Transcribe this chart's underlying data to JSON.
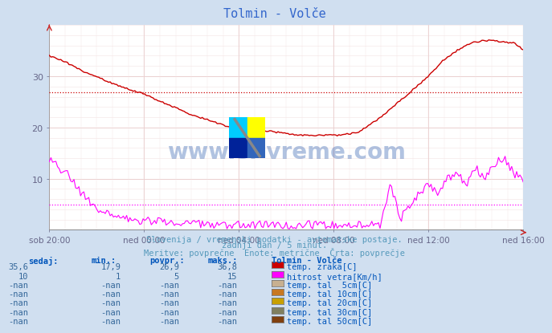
{
  "title": "Tolmin - Volče",
  "bg_color": "#d0dff0",
  "plot_bg_color": "#ffffff",
  "grid_major_color": "#e8c8c8",
  "grid_minor_color": "#f4e4e4",
  "x_labels": [
    "sob 20:00",
    "ned 00:00",
    "ned 04:00",
    "ned 08:00",
    "ned 12:00",
    "ned 16:00"
  ],
  "x_ticks_pos": [
    0.0,
    0.2,
    0.4,
    0.6,
    0.8,
    1.0
  ],
  "y_min": 0,
  "y_max": 40,
  "y_ticks": [
    10,
    20,
    30
  ],
  "avg_temp_line": 26.9,
  "avg_wind_line": 5.0,
  "temp_color": "#cc0000",
  "wind_color": "#ff00ff",
  "subtitle1": "Slovenija / vremenski podatki - avtomatske postaje.",
  "subtitle2": "zadnji dan / 5 minut.",
  "subtitle3": "Meritve: povprečne  Enote: metrične  Črta: povprečje",
  "subtitle_color": "#5599bb",
  "table_header_color": "#0055bb",
  "table_value_color": "#336699",
  "legend_title": "Tolmin - Volče",
  "legend_items": [
    {
      "label": "temp. zraka[C]",
      "color": "#cc0000"
    },
    {
      "label": "hitrost vetra[Km/h]",
      "color": "#ff00ff"
    },
    {
      "label": "temp. tal  5cm[C]",
      "color": "#c8b090"
    },
    {
      "label": "temp. tal 10cm[C]",
      "color": "#c87820"
    },
    {
      "label": "temp. tal 20cm[C]",
      "color": "#c8a000"
    },
    {
      "label": "temp. tal 30cm[C]",
      "color": "#808060"
    },
    {
      "label": "temp. tal 50cm[C]",
      "color": "#804010"
    }
  ],
  "table_rows": [
    {
      "sedaj": "35,6",
      "min": "17,9",
      "povpr": "26,9",
      "maks": "36,8"
    },
    {
      "sedaj": "10",
      "min": "1",
      "povpr": "5",
      "maks": "15"
    },
    {
      "sedaj": "-nan",
      "min": "-nan",
      "povpr": "-nan",
      "maks": "-nan"
    },
    {
      "sedaj": "-nan",
      "min": "-nan",
      "povpr": "-nan",
      "maks": "-nan"
    },
    {
      "sedaj": "-nan",
      "min": "-nan",
      "povpr": "-nan",
      "maks": "-nan"
    },
    {
      "sedaj": "-nan",
      "min": "-nan",
      "povpr": "-nan",
      "maks": "-nan"
    },
    {
      "sedaj": "-nan",
      "min": "-nan",
      "povpr": "-nan",
      "maks": "-nan"
    }
  ],
  "watermark": "www.si-vreme.com",
  "watermark_color": "#2255aa",
  "logo_colors": [
    "#00ccff",
    "#ffff00",
    "#0000aa",
    "#2255aa"
  ]
}
